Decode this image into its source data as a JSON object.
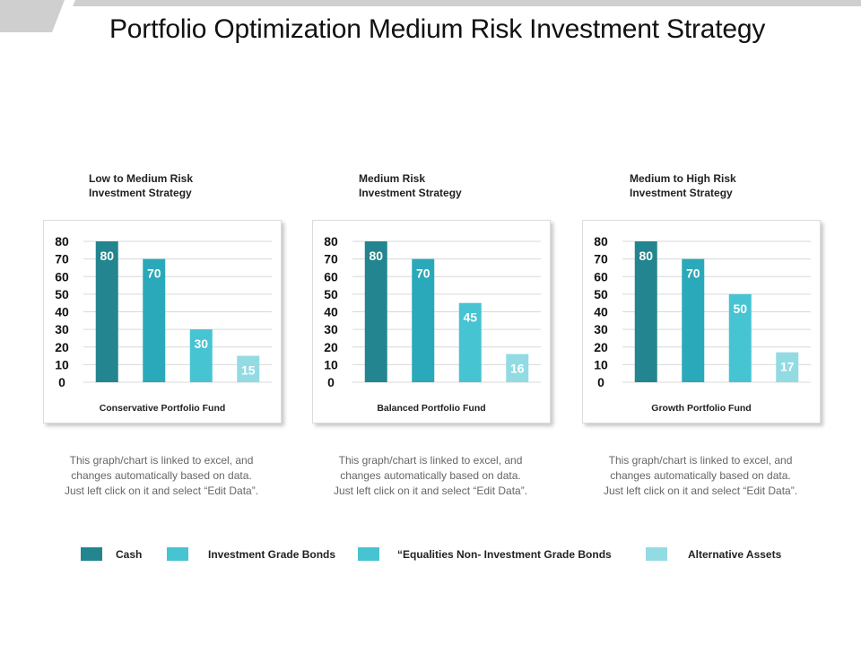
{
  "page": {
    "title": "Portfolio Optimization Medium Risk Investment Strategy"
  },
  "colors": {
    "cash": "#23858f",
    "investment_grade_bonds": "#2aa9ba",
    "equalities": "#47c4d2",
    "alternative_assets": "#93dbe3",
    "top_bar": "#cfcfcf"
  },
  "legend": {
    "items": [
      {
        "label": "Cash",
        "color": "#23858f"
      },
      {
        "label": "Investment Grade Bonds",
        "color": "#47c4d2"
      },
      {
        "label": "“Equalities Non- Investment Grade Bonds",
        "color": "#47c4d2"
      },
      {
        "label": "Alternative Assets",
        "color": "#93dbe3"
      }
    ]
  },
  "panels": [
    {
      "heading_line1": "Low to Medium Risk",
      "heading_line2": "Investment Strategy",
      "fund_label": "Conservative Portfolio Fund",
      "note_line1": "This graph/chart is linked to excel, and",
      "note_line2": "changes automatically based on data.",
      "note_line3": "Just left click on it and select “Edit Data”."
    },
    {
      "heading_line1": "Medium Risk",
      "heading_line2": "Investment Strategy",
      "fund_label": "Balanced Portfolio Fund",
      "note_line1": "This graph/chart is linked to excel, and",
      "note_line2": "changes automatically based on data.",
      "note_line3": "Just left click on it and select “Edit Data”."
    },
    {
      "heading_line1": "Medium to High Risk",
      "heading_line2": "Investment Strategy",
      "fund_label": "Growth Portfolio Fund",
      "note_line1": "This graph/chart is linked to excel, and",
      "note_line2": "changes automatically based on data.",
      "note_line3": "Just left click on it and select “Edit Data”."
    }
  ],
  "chart_data": [
    {
      "type": "bar",
      "title": "Low to Medium Risk Investment Strategy",
      "xlabel": "Conservative Portfolio Fund",
      "ylabel": "",
      "ylim": [
        0,
        80
      ],
      "yticks": [
        0,
        10,
        20,
        30,
        40,
        50,
        60,
        70,
        80
      ],
      "grid": true,
      "categories": [
        "Cash",
        "Investment Grade Bonds",
        "“Equalities Non- Investment Grade Bonds",
        "Alternative Assets"
      ],
      "values": [
        80,
        70,
        30,
        15
      ],
      "colors": [
        "#23858f",
        "#2aa9ba",
        "#47c4d2",
        "#93dbe3"
      ]
    },
    {
      "type": "bar",
      "title": "Medium Risk Investment Strategy",
      "xlabel": "Balanced Portfolio Fund",
      "ylabel": "",
      "ylim": [
        0,
        80
      ],
      "yticks": [
        0,
        10,
        20,
        30,
        40,
        50,
        60,
        70,
        80
      ],
      "grid": true,
      "categories": [
        "Cash",
        "Investment Grade Bonds",
        "“Equalities Non- Investment Grade Bonds",
        "Alternative Assets"
      ],
      "values": [
        80,
        70,
        45,
        16
      ],
      "colors": [
        "#23858f",
        "#2aa9ba",
        "#47c4d2",
        "#93dbe3"
      ]
    },
    {
      "type": "bar",
      "title": "Medium to High Risk Investment Strategy",
      "xlabel": "Growth Portfolio Fund",
      "ylabel": "",
      "ylim": [
        0,
        80
      ],
      "yticks": [
        0,
        10,
        20,
        30,
        40,
        50,
        60,
        70,
        80
      ],
      "grid": true,
      "categories": [
        "Cash",
        "Investment Grade Bonds",
        "“Equalities Non- Investment Grade Bonds",
        "Alternative Assets"
      ],
      "values": [
        80,
        70,
        50,
        17
      ],
      "colors": [
        "#23858f",
        "#2aa9ba",
        "#47c4d2",
        "#93dbe3"
      ]
    }
  ]
}
